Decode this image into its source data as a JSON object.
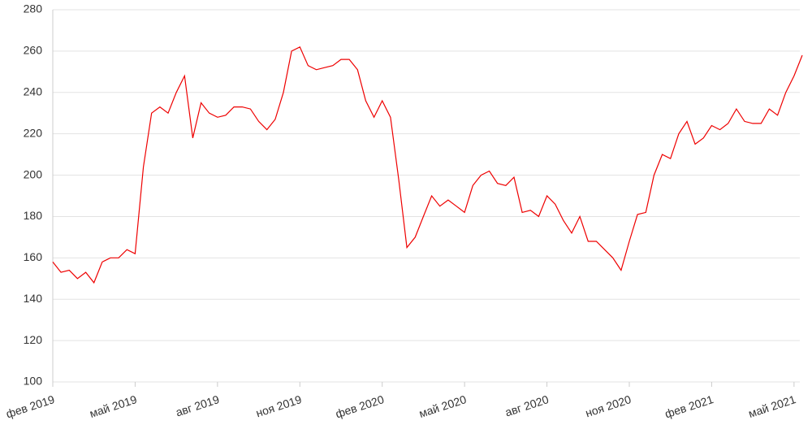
{
  "chart_data": {
    "type": "line",
    "categories": [
      "фев 2019",
      null,
      null,
      null,
      null,
      null,
      null,
      null,
      null,
      null,
      "май 2019",
      null,
      null,
      null,
      null,
      null,
      null,
      null,
      null,
      null,
      "авг 2019",
      null,
      null,
      null,
      null,
      null,
      null,
      null,
      null,
      null,
      "ноя 2019",
      null,
      null,
      null,
      null,
      null,
      null,
      null,
      null,
      null,
      "фев 2020",
      null,
      null,
      null,
      null,
      null,
      null,
      null,
      null,
      null,
      "май 2020",
      null,
      null,
      null,
      null,
      null,
      null,
      null,
      null,
      null,
      "авг 2020",
      null,
      null,
      null,
      null,
      null,
      null,
      null,
      null,
      null,
      "ноя 2020",
      null,
      null,
      null,
      null,
      null,
      null,
      null,
      null,
      null,
      "фев 2021",
      null,
      null,
      null,
      null,
      null,
      null,
      null,
      null,
      null,
      "май 2021",
      null
    ],
    "series": [
      {
        "color": "#ee0000",
        "values": [
          158,
          153,
          154,
          150,
          153,
          148,
          158,
          160,
          160,
          164,
          162,
          204,
          230,
          233,
          230,
          240,
          248,
          218,
          235,
          230,
          228,
          229,
          233,
          233,
          232,
          226,
          222,
          227,
          240,
          260,
          262,
          253,
          251,
          252,
          253,
          256,
          256,
          251,
          236,
          228,
          236,
          228,
          198,
          165,
          170,
          180,
          190,
          185,
          188,
          185,
          182,
          195,
          200,
          202,
          196,
          195,
          199,
          182,
          183,
          180,
          190,
          186,
          178,
          172,
          180,
          168,
          168,
          164,
          160,
          154,
          168,
          181,
          182,
          200,
          210,
          208,
          220,
          226,
          215,
          218,
          224,
          222,
          225,
          232,
          226,
          225,
          225,
          232,
          229,
          240,
          248,
          258
        ]
      }
    ],
    "ylim": [
      100,
      280
    ],
    "yticks": [
      100,
      120,
      140,
      160,
      180,
      200,
      220,
      240,
      260,
      280
    ],
    "grid": true
  }
}
